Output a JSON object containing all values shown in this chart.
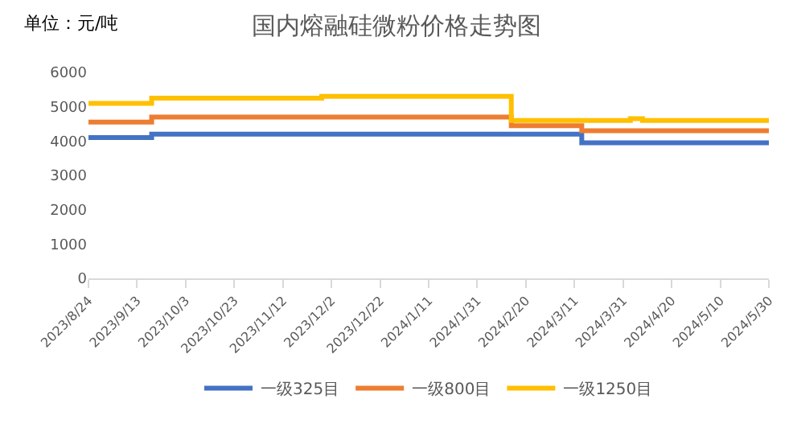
{
  "chart_data": {
    "type": "step",
    "title": "国内熔融硅微粉价格走势图",
    "annotations": [
      "单位：元/吨"
    ],
    "x": [
      "2023-08-24",
      "2023-09-19",
      "2023-11-28",
      "2024-02-14",
      "2024-03-14",
      "2024-04-03",
      "2024-04-08",
      "2024-05-30"
    ],
    "series": [
      {
        "name": "一级325目",
        "color": "#4472c4",
        "values": [
          4100,
          4200,
          4200,
          4200,
          3950,
          3950,
          3950,
          3950
        ]
      },
      {
        "name": "一级800目",
        "color": "#ed7d31",
        "values": [
          4550,
          4700,
          4700,
          4450,
          4300,
          4300,
          4300,
          4300
        ]
      },
      {
        "name": "一级1250目",
        "color": "#ffc000",
        "values": [
          5100,
          5250,
          5300,
          4600,
          4600,
          4650,
          4600,
          4600
        ]
      }
    ],
    "xlim": [
      "2023-08-24",
      "2024-05-30"
    ],
    "xticks": [
      {
        "value": "2023-08-24",
        "label": "2023/8/24"
      },
      {
        "value": "2023-09-13",
        "label": "2023/9/13"
      },
      {
        "value": "2023-10-03",
        "label": "2023/10/3"
      },
      {
        "value": "2023-10-23",
        "label": "2023/10/23"
      },
      {
        "value": "2023-11-12",
        "label": "2023/11/12"
      },
      {
        "value": "2023-12-02",
        "label": "2023/12/2"
      },
      {
        "value": "2023-12-22",
        "label": "2023/12/22"
      },
      {
        "value": "2024-01-11",
        "label": "2024/1/11"
      },
      {
        "value": "2024-01-31",
        "label": "2024/1/31"
      },
      {
        "value": "2024-02-20",
        "label": "2024/2/20"
      },
      {
        "value": "2024-03-11",
        "label": "2024/3/11"
      },
      {
        "value": "2024-03-31",
        "label": "2024/3/31"
      },
      {
        "value": "2024-04-20",
        "label": "2024/4/20"
      },
      {
        "value": "2024-05-10",
        "label": "2024/5/10"
      },
      {
        "value": "2024-05-30",
        "label": "2024/5/30"
      }
    ],
    "ylim": [
      0,
      6000
    ],
    "yticks": [
      0,
      1000,
      2000,
      3000,
      4000,
      5000,
      6000
    ],
    "legend": "bottom",
    "marker": "none",
    "line_style": "solid"
  }
}
